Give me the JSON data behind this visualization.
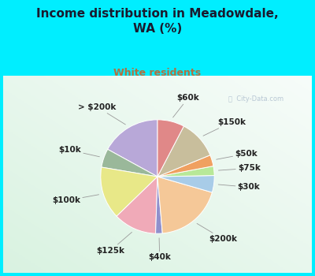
{
  "title": "Income distribution in Meadowdale,\nWA (%)",
  "subtitle": "White residents",
  "title_color": "#1a1a2e",
  "subtitle_color": "#b07040",
  "bg_cyan": "#00eeff",
  "watermark": "City-Data.com",
  "slices": [
    {
      "label": "> $200k",
      "value": 16.0,
      "color": "#b8a8d8"
    },
    {
      "label": "$10k",
      "value": 5.0,
      "color": "#9ab89a"
    },
    {
      "label": "$100k",
      "value": 14.0,
      "color": "#e8e888"
    },
    {
      "label": "$125k",
      "value": 11.5,
      "color": "#f0aab8"
    },
    {
      "label": "$40k",
      "value": 1.8,
      "color": "#9090cc"
    },
    {
      "label": "$200k",
      "value": 18.0,
      "color": "#f5c898"
    },
    {
      "label": "$30k",
      "value": 4.5,
      "color": "#a8cce8"
    },
    {
      "label": "$75k",
      "value": 2.5,
      "color": "#b8e898"
    },
    {
      "label": "$50k",
      "value": 3.0,
      "color": "#f0a060"
    },
    {
      "label": "$150k",
      "value": 10.5,
      "color": "#c8be9c"
    },
    {
      "label": "$60k",
      "value": 7.2,
      "color": "#e08888"
    }
  ],
  "label_fontsize": 7.5,
  "label_color": "#222222",
  "figsize": [
    4.0,
    3.5
  ],
  "dpi": 100
}
